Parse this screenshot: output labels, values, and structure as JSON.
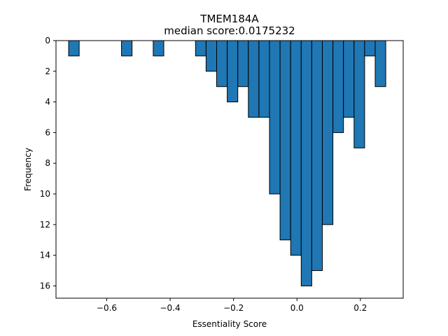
{
  "chart_data": {
    "type": "bar",
    "title": "TMEM184A",
    "subtitle": "median score:0.0175232",
    "xlabel": "Essentiality Score",
    "ylabel": "Frequency",
    "y_axis_inverted": true,
    "xlim": [
      -0.76,
      0.335
    ],
    "ylim": [
      0,
      16.8
    ],
    "x_ticks": [
      -0.6,
      -0.4,
      -0.2,
      0.0,
      0.2
    ],
    "x_tick_labels": [
      "−0.6",
      "−0.4",
      "−0.2",
      "0.0",
      "0.2"
    ],
    "y_ticks": [
      0,
      2,
      4,
      6,
      8,
      10,
      12,
      14,
      16
    ],
    "y_tick_labels": [
      "0",
      "2",
      "4",
      "6",
      "8",
      "10",
      "12",
      "14",
      "16"
    ],
    "bar_color": "#1f77b4",
    "edge_color": "#000000",
    "bin_width": 0.0333,
    "bin_centers": [
      -0.7035,
      -0.5368,
      -0.4367,
      -0.3033,
      -0.27,
      -0.2367,
      -0.2033,
      -0.17,
      -0.1367,
      -0.1033,
      -0.07,
      -0.0367,
      -0.0033,
      0.03,
      0.0633,
      0.0967,
      0.13,
      0.1633,
      0.1967,
      0.23,
      0.2633
    ],
    "values": [
      1,
      1,
      1,
      1,
      2,
      3,
      4,
      3,
      5,
      5,
      10,
      13,
      14,
      16,
      15,
      12,
      6,
      5,
      7,
      1,
      3
    ]
  }
}
